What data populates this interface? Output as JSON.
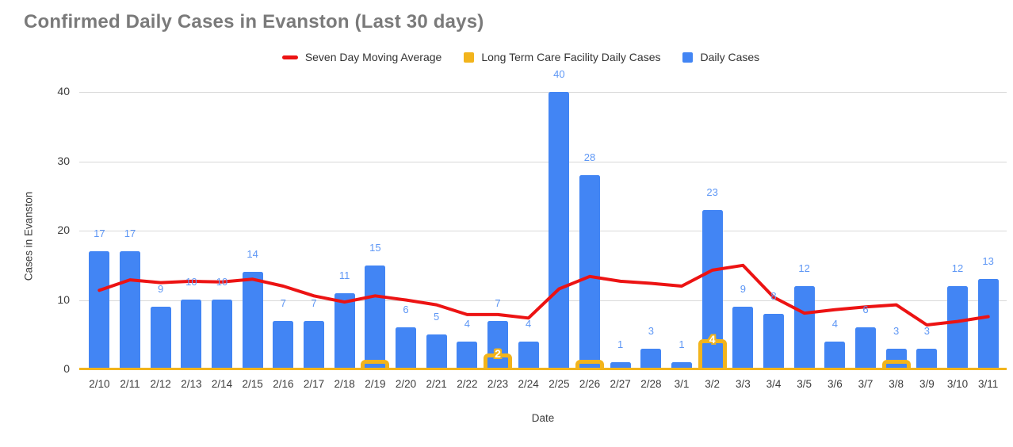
{
  "title": "Confirmed Daily Cases in Evanston (Last 30 days)",
  "legend": {
    "items": [
      {
        "label": "Seven Day Moving Average",
        "swatch": "line",
        "color": "#ec1313"
      },
      {
        "label": "Long Term Care Facility Daily Cases",
        "swatch": "square",
        "color": "#f2b41c"
      },
      {
        "label": "Daily Cases",
        "swatch": "square",
        "color": "#4285f4"
      }
    ]
  },
  "axes": {
    "x_title": "Date",
    "y_title": "Cases in Evanston",
    "y_ticks": [
      0,
      10,
      20,
      30,
      40
    ]
  },
  "colors": {
    "daily_bar": "#4285f4",
    "ltc_bar": "#f2b41c",
    "moving_average_line": "#ec1313",
    "data_label_blue": "#5e97f5",
    "gridline": "#d9d9d9",
    "title_text": "#7a7a7a",
    "axis_text": "#3c3c3c"
  },
  "chart_data": {
    "type": "bar",
    "title": "Confirmed Daily Cases in Evanston (Last 30 days)",
    "xlabel": "Date",
    "ylabel": "Cases in Evanston",
    "ylim": [
      0,
      40
    ],
    "y_ticks": [
      0,
      10,
      20,
      30,
      40
    ],
    "grid": true,
    "legend_position": "top",
    "categories": [
      "2/10",
      "2/11",
      "2/12",
      "2/13",
      "2/14",
      "2/15",
      "2/16",
      "2/17",
      "2/18",
      "2/19",
      "2/20",
      "2/21",
      "2/22",
      "2/23",
      "2/24",
      "2/25",
      "2/26",
      "2/27",
      "2/28",
      "3/1",
      "3/2",
      "3/3",
      "3/4",
      "3/5",
      "3/6",
      "3/7",
      "3/8",
      "3/9",
      "3/10",
      "3/11"
    ],
    "series": [
      {
        "name": "Daily Cases",
        "type": "bar",
        "color": "#4285f4",
        "values": [
          17,
          17,
          9,
          10,
          10,
          14,
          7,
          7,
          11,
          15,
          6,
          5,
          4,
          7,
          4,
          40,
          28,
          1,
          3,
          1,
          23,
          9,
          8,
          12,
          4,
          6,
          3,
          3,
          12,
          13
        ]
      },
      {
        "name": "Long Term Care Facility Daily Cases",
        "type": "bar",
        "color": "#f2b41c",
        "values": [
          0,
          0,
          0,
          0,
          0,
          0,
          0,
          0,
          0,
          1,
          0,
          0,
          0,
          2,
          0,
          0,
          1,
          0,
          0,
          0,
          4,
          0,
          0,
          0,
          0,
          0,
          1,
          0,
          0,
          0
        ]
      },
      {
        "name": "Seven Day Moving Average",
        "type": "line",
        "color": "#ec1313",
        "values": [
          11.4,
          12.9,
          12.5,
          12.7,
          12.6,
          13.0,
          12.0,
          10.6,
          9.7,
          10.6,
          10.0,
          9.3,
          7.9,
          7.9,
          7.4,
          11.6,
          13.4,
          12.7,
          12.4,
          12.0,
          14.3,
          15.0,
          10.4,
          8.1,
          8.6,
          9.0,
          9.3,
          6.4,
          6.9,
          7.6
        ]
      }
    ]
  }
}
